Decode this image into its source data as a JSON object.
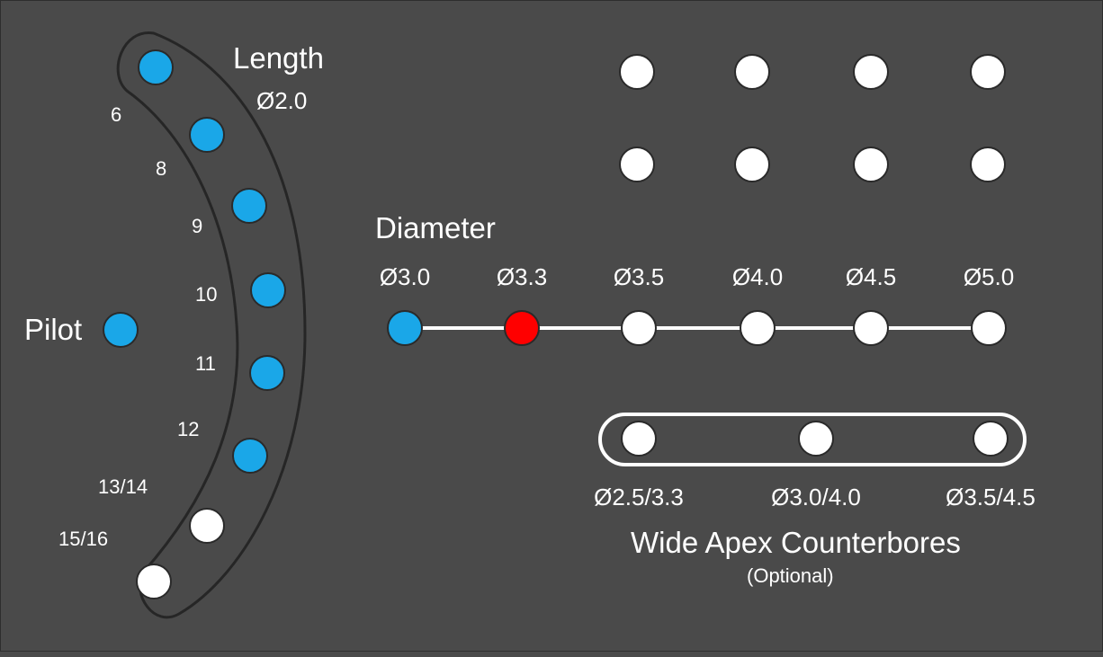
{
  "length": {
    "title": "Length",
    "diameter_label": "Ø2.0",
    "slots": [
      {
        "label": "6",
        "color": "#1aa7e8"
      },
      {
        "label": "8",
        "color": "#1aa7e8"
      },
      {
        "label": "9",
        "color": "#1aa7e8"
      },
      {
        "label": "10",
        "color": "#1aa7e8"
      },
      {
        "label": "11",
        "color": "#1aa7e8"
      },
      {
        "label": "12",
        "color": "#1aa7e8"
      },
      {
        "label": "13/14",
        "color": "#ffffff"
      },
      {
        "label": "15/16",
        "color": "#ffffff"
      }
    ]
  },
  "pilot": {
    "label": "Pilot",
    "color": "#1aa7e8"
  },
  "diameter": {
    "title": "Diameter",
    "slots": [
      {
        "label": "Ø3.0",
        "color": "#1aa7e8"
      },
      {
        "label": "Ø3.3",
        "color": "#ff0000"
      },
      {
        "label": "Ø3.5",
        "color": "#ffffff"
      },
      {
        "label": "Ø4.0",
        "color": "#ffffff"
      },
      {
        "label": "Ø4.5",
        "color": "#ffffff"
      },
      {
        "label": "Ø5.0",
        "color": "#ffffff"
      }
    ]
  },
  "counterbores": {
    "title": "Wide Apex Counterbores",
    "subtitle": "(Optional)",
    "slots": [
      {
        "label": "Ø2.5/3.3",
        "color": "#ffffff"
      },
      {
        "label": "Ø3.0/4.0",
        "color": "#ffffff"
      },
      {
        "label": "Ø3.5/4.5",
        "color": "#ffffff"
      }
    ]
  },
  "spare_grid": {
    "rows": 2,
    "cols": 4,
    "color": "#ffffff"
  },
  "colors": {
    "background": "#4a4a4a",
    "blue": "#1aa7e8",
    "red": "#ff0000",
    "white": "#ffffff"
  }
}
